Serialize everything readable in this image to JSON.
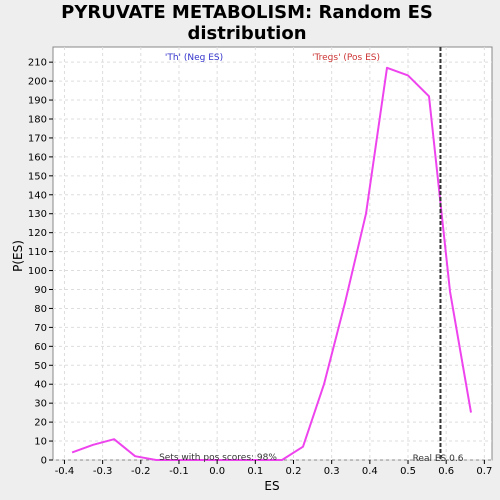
{
  "chart_data": {
    "type": "line",
    "title_line1": "PYRUVATE METABOLISM: Random ES",
    "title_line2": "distribution",
    "xlabel": "ES",
    "ylabel": "P(ES)",
    "xlim": [
      -0.43,
      0.72
    ],
    "ylim": [
      0,
      218
    ],
    "x_ticks": [
      -0.4,
      -0.3,
      -0.2,
      -0.1,
      0.0,
      0.1,
      0.2,
      0.3,
      0.4,
      0.5,
      0.6,
      0.7
    ],
    "x_tick_labels": [
      "-0.4",
      "-0.3",
      "-0.2",
      "-0.1",
      "0.0",
      "0.1",
      "0.2",
      "0.3",
      "0.4",
      "0.5",
      "0.6",
      "0.7"
    ],
    "y_ticks": [
      0,
      10,
      20,
      30,
      40,
      50,
      60,
      70,
      80,
      90,
      100,
      110,
      120,
      130,
      140,
      150,
      160,
      170,
      180,
      190,
      200,
      210
    ],
    "y_tick_labels": [
      "0",
      "10",
      "20",
      "30",
      "40",
      "50",
      "60",
      "70",
      "80",
      "90",
      "100",
      "110",
      "120",
      "130",
      "140",
      "150",
      "160",
      "170",
      "180",
      "190",
      "200",
      "210"
    ],
    "grid": true,
    "series": [
      {
        "color": "#ee44ee",
        "x": [
          -0.38,
          -0.325,
          -0.27,
          -0.215,
          -0.16,
          -0.105,
          -0.05,
          0.005,
          0.06,
          0.115,
          0.17,
          0.225,
          0.28,
          0.335,
          0.39,
          0.445,
          0.5,
          0.555,
          0.61,
          0.665
        ],
        "y": [
          4,
          8,
          11,
          2,
          0,
          0,
          0,
          0,
          0,
          0,
          0,
          7,
          40,
          83,
          130,
          207,
          203,
          192,
          89,
          25
        ]
      }
    ],
    "real_es": 0.585,
    "annotations": {
      "neg_label": "'Th' (Neg ES)",
      "pos_label": "'Tregs' (Pos ES)",
      "pos_scores": "Sets with pos scores: 98%",
      "real_es_label": "Real ES 0.6"
    },
    "colors": {
      "background": "#eeeeee",
      "plot_bg": "#ffffff",
      "line": "#ee44ee",
      "neg_label": "#3333cc",
      "pos_label": "#cc3333",
      "grid": "#dddddd",
      "real_es_line": "#333333"
    }
  }
}
